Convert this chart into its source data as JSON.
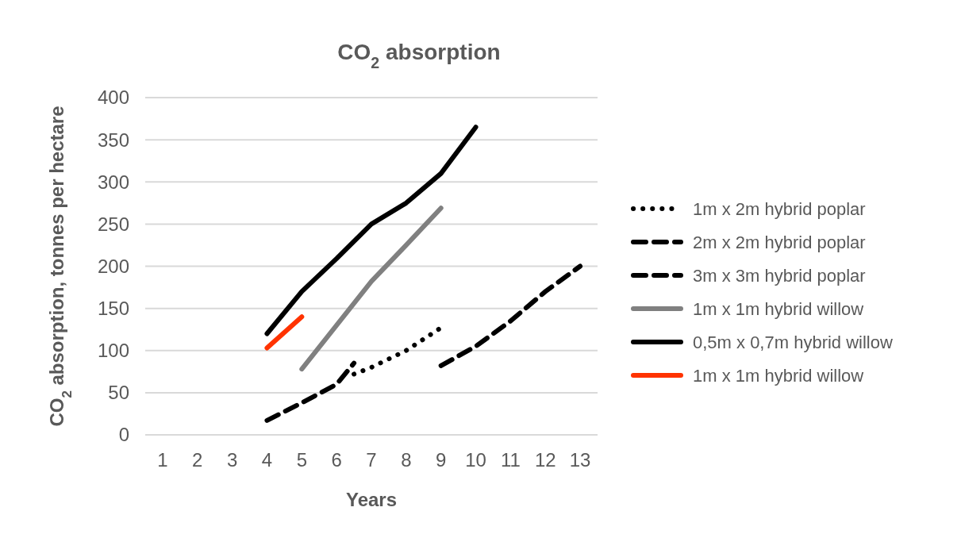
{
  "chart_data": {
    "type": "line",
    "title": "CO$_{2}$ absorption",
    "xlabel": "Years",
    "ylabel": "CO$_{2}$ absorption, tonnes per hectare",
    "xlim": [
      0.5,
      13.5
    ],
    "xticks": [
      1,
      2,
      3,
      4,
      5,
      6,
      7,
      8,
      9,
      10,
      11,
      12,
      13
    ],
    "ylim": [
      0,
      400
    ],
    "yticks": [
      0,
      50,
      100,
      150,
      200,
      250,
      300,
      350,
      400
    ],
    "grid": "y",
    "legend": "right",
    "marker": "none",
    "series": [
      {
        "name": "1m x 2m hybrid poplar",
        "color": "#000000",
        "line_style": "dotted",
        "x": [
          6.5,
          7,
          8,
          9
        ],
        "values": [
          72,
          80,
          100,
          127
        ]
      },
      {
        "name": "2m x 2m hybrid poplar",
        "color": "#000000",
        "line_style": "dashed",
        "x": [
          4,
          5,
          6,
          6.5
        ],
        "values": [
          17,
          38,
          60,
          85
        ]
      },
      {
        "name": "3m x 3m hybrid poplar",
        "color": "#000000",
        "line_style": "dashed",
        "x": [
          9,
          10,
          11,
          12,
          13
        ],
        "values": [
          82,
          105,
          135,
          170,
          200
        ]
      },
      {
        "name": "1m x 1m hybrid willow",
        "color": "#808080",
        "line_style": "solid",
        "x": [
          5,
          6,
          7,
          8,
          9
        ],
        "values": [
          78,
          130,
          182,
          225,
          269
        ]
      },
      {
        "name": "0,5m x 0,7m hybrid willow",
        "color": "#000000",
        "line_style": "solid",
        "x": [
          4,
          5,
          6,
          7,
          8,
          9,
          10
        ],
        "values": [
          120,
          170,
          209,
          250,
          275,
          310,
          365
        ]
      },
      {
        "name": "1m x 1m hybrid willow",
        "color": "#ff3300",
        "line_style": "solid",
        "x": [
          4,
          5
        ],
        "values": [
          103,
          140
        ]
      }
    ]
  }
}
